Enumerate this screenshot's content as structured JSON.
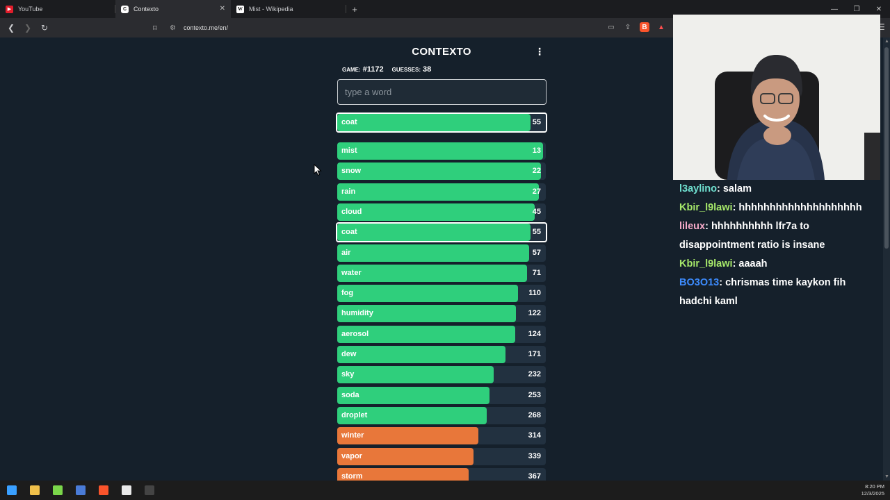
{
  "tabs": [
    {
      "title": "YouTube",
      "favicon": "youtube-icon",
      "active": false
    },
    {
      "title": "Contexto",
      "favicon": "contexto-icon",
      "active": true
    },
    {
      "title": "Mist - Wikipedia",
      "favicon": "wikipedia-icon",
      "active": false
    }
  ],
  "address_bar": {
    "url": "contexto.me/en/"
  },
  "game": {
    "title": "CONTEXTO",
    "game_label": "GAME:",
    "game_number": "#1172",
    "guesses_label": "GUESSES:",
    "guesses": "38",
    "input_placeholder": "type a word",
    "last_guess": {
      "word": "coat",
      "rank": "55",
      "fill": 0.925,
      "color": "#2fcf7c"
    },
    "guesses_list": [
      {
        "word": "mist",
        "rank": "13",
        "fill": 0.985,
        "color": "#2fcf7c"
      },
      {
        "word": "snow",
        "rank": "22",
        "fill": 0.975,
        "color": "#2fcf7c"
      },
      {
        "word": "rain",
        "rank": "27",
        "fill": 0.965,
        "color": "#2fcf7c"
      },
      {
        "word": "cloud",
        "rank": "45",
        "fill": 0.945,
        "color": "#2fcf7c"
      },
      {
        "word": "coat",
        "rank": "55",
        "fill": 0.925,
        "color": "#2fcf7c",
        "selected": true
      },
      {
        "word": "air",
        "rank": "57",
        "fill": 0.92,
        "color": "#2fcf7c"
      },
      {
        "word": "water",
        "rank": "71",
        "fill": 0.91,
        "color": "#2fcf7c"
      },
      {
        "word": "fog",
        "rank": "110",
        "fill": 0.865,
        "color": "#2fcf7c"
      },
      {
        "word": "humidity",
        "rank": "122",
        "fill": 0.855,
        "color": "#2fcf7c"
      },
      {
        "word": "aerosol",
        "rank": "124",
        "fill": 0.852,
        "color": "#2fcf7c"
      },
      {
        "word": "dew",
        "rank": "171",
        "fill": 0.805,
        "color": "#2fcf7c"
      },
      {
        "word": "sky",
        "rank": "232",
        "fill": 0.75,
        "color": "#2fcf7c"
      },
      {
        "word": "soda",
        "rank": "253",
        "fill": 0.73,
        "color": "#2fcf7c"
      },
      {
        "word": "droplet",
        "rank": "268",
        "fill": 0.715,
        "color": "#2fcf7c"
      },
      {
        "word": "winter",
        "rank": "314",
        "fill": 0.675,
        "color": "#e8773a"
      },
      {
        "word": "vapor",
        "rank": "339",
        "fill": 0.653,
        "color": "#e8773a"
      },
      {
        "word": "storm",
        "rank": "367",
        "fill": 0.63,
        "color": "#e8773a"
      }
    ]
  },
  "chat": [
    {
      "user": "l3aylino",
      "user_color": "#6fe0d0",
      "text": "salam"
    },
    {
      "user": "Kbir_l9lawi",
      "user_color": "#a6e86a",
      "text": "hhhhhhhhhhhhhhhhhhhh"
    },
    {
      "user": "lileux",
      "user_color": "#f4a9c8",
      "text": "hhhhhhhhhh lfr7a to disappointment ratio is insane"
    },
    {
      "user": "Kbir_l9lawi",
      "user_color": "#a6e86a",
      "text": "aaaah"
    },
    {
      "user": "BO3O13",
      "user_color": "#3d8cff",
      "text": "chrismas time kaykon fih hadchi kaml"
    }
  ],
  "taskbar": {
    "time": "8:20 PM",
    "date": "12/3/2025",
    "icons": [
      {
        "name": "windows-start-icon",
        "color": "#3aa0ff"
      },
      {
        "name": "file-explorer-icon",
        "color": "#f1c04a"
      },
      {
        "name": "green-app-icon",
        "color": "#7bd64a"
      },
      {
        "name": "app-icon",
        "color": "#4a7bd6"
      },
      {
        "name": "brave-browser-icon",
        "color": "#fb542b"
      },
      {
        "name": "chrome-icon",
        "color": "#e9e9e9"
      },
      {
        "name": "obs-icon",
        "color": "#444"
      }
    ]
  }
}
